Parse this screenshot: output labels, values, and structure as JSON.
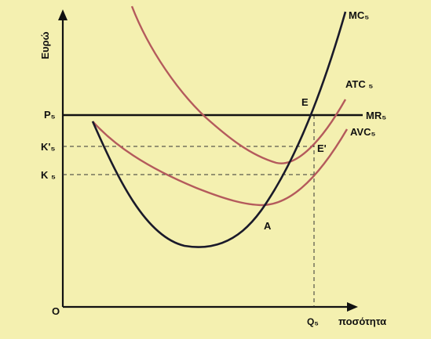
{
  "y_axis_label": "Ευρώ",
  "x_axis_label": "ποσότητα",
  "origin_label": "O",
  "price_labels": {
    "p": "P₅",
    "k_prime": "K'₅",
    "k": "K ₅"
  },
  "quantity_label": "Q₅",
  "curve_labels": {
    "mc": "MC₅",
    "atc": "ATC ₅",
    "avc": "AVC₅",
    "mr": "MR₅"
  },
  "point_labels": {
    "e": "E",
    "e_prime": "E'",
    "a": "A"
  },
  "colors": {
    "background": "#f4f0b0",
    "mc": "#1a1a2a",
    "atc": "#b45a5c",
    "avc": "#b45a5c",
    "axes": "#111111"
  }
}
